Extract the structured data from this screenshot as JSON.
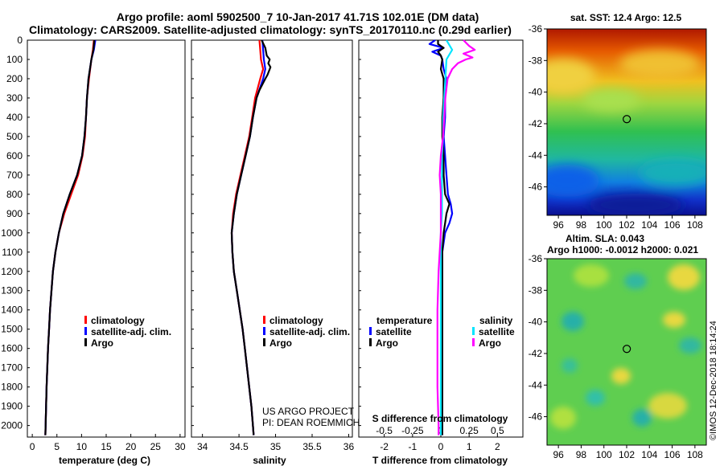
{
  "title_line1": "Argo profile: aoml 5902500_7 10-Jan-2017 41.71S 102.01E (DM data)",
  "title_line2": "Climatology: CARS2009. Satellite-adjusted climatology: synTS_20170110.nc (0.29d earlier)",
  "credit_line1": "US ARGO PROJECT",
  "credit_line2": "PI: DEAN ROEMMICH",
  "watermark": "©IMOS 12-Dec-2018 18:14:24",
  "map_sst_title": "sat. SST: 12.4 Argo: 12.5",
  "map_sla_title1": "Altim. SLA: 0.043",
  "map_sla_title2": "Argo h1000: -0.0012 h2000: 0.021",
  "depth_ticks": [
    0,
    100,
    200,
    300,
    400,
    500,
    600,
    700,
    800,
    900,
    1000,
    1100,
    1200,
    1300,
    1400,
    1500,
    1600,
    1700,
    1800,
    1900,
    2000
  ],
  "colors": {
    "climatology": "#ff0000",
    "satellite": "#0000ff",
    "argo": "#000000",
    "sat_salinity": "#00e5ff",
    "argo_salinity": "#ff00ff"
  },
  "chart_data": [
    {
      "type": "line",
      "panel": "temperature",
      "xlabel": "temperature (deg C)",
      "xlim": [
        -1,
        31
      ],
      "xticks": [
        0,
        5,
        10,
        15,
        20,
        25,
        30
      ],
      "ylim": [
        2060,
        0
      ],
      "legend": [
        "climatology",
        "satellite-adj. clim.",
        "Argo"
      ],
      "legend_placement": "lower-right",
      "series": [
        {
          "name": "climatology",
          "color": "#ff0000",
          "depth": [
            0,
            50,
            100,
            200,
            300,
            400,
            500,
            600,
            700,
            800,
            900,
            1000,
            1100,
            1200,
            1300,
            1400,
            1500,
            1600,
            1700,
            1800,
            1900,
            2000,
            2050
          ],
          "values": [
            12.5,
            12.3,
            12.0,
            11.5,
            11.1,
            10.9,
            10.7,
            10.2,
            9.3,
            7.9,
            6.5,
            5.4,
            4.7,
            4.2,
            3.9,
            3.6,
            3.4,
            3.2,
            3.05,
            2.9,
            2.8,
            2.7,
            2.65
          ]
        },
        {
          "name": "satellite-adj. clim.",
          "color": "#0000ff",
          "depth": [
            0,
            50,
            100,
            200,
            300,
            400,
            500,
            600,
            700,
            800,
            900,
            1000,
            1100,
            1200,
            1300,
            1400,
            1500,
            1600,
            1700,
            1800,
            1900,
            2000,
            2050
          ],
          "values": [
            12.8,
            12.5,
            12.0,
            11.4,
            11.1,
            10.9,
            10.6,
            10.1,
            9.1,
            7.6,
            6.3,
            5.4,
            4.7,
            4.2,
            3.9,
            3.6,
            3.4,
            3.2,
            3.05,
            2.9,
            2.8,
            2.7,
            2.65
          ]
        },
        {
          "name": "Argo",
          "color": "#000000",
          "depth": [
            0,
            50,
            100,
            200,
            300,
            400,
            500,
            600,
            700,
            800,
            900,
            1000,
            1100,
            1200,
            1300,
            1400,
            1500,
            1600,
            1700,
            1800,
            1900,
            2000,
            2050
          ],
          "values": [
            12.6,
            12.4,
            12.0,
            11.4,
            11.1,
            10.9,
            10.6,
            10.1,
            9.1,
            7.6,
            6.3,
            5.4,
            4.7,
            4.2,
            3.9,
            3.6,
            3.4,
            3.2,
            3.05,
            2.9,
            2.8,
            2.7,
            2.65
          ]
        }
      ]
    },
    {
      "type": "line",
      "panel": "salinity",
      "xlabel": "salinity",
      "xlim": [
        33.85,
        36.05
      ],
      "xticks": [
        34,
        34.5,
        35,
        35.5,
        36
      ],
      "ylim": [
        2060,
        0
      ],
      "legend": [
        "climatology",
        "satellite-adj. clim.",
        "Argo"
      ],
      "legend_placement": "lower-right",
      "series": [
        {
          "name": "climatology",
          "color": "#ff0000",
          "depth": [
            0,
            50,
            100,
            150,
            200,
            300,
            400,
            500,
            600,
            700,
            800,
            900,
            1000,
            1100,
            1200,
            1300,
            1400,
            1500,
            1600,
            1700,
            1800,
            1900,
            2000,
            2050
          ],
          "values": [
            34.78,
            34.79,
            34.8,
            34.83,
            34.79,
            34.72,
            34.68,
            34.64,
            34.58,
            34.52,
            34.46,
            34.42,
            34.4,
            34.41,
            34.43,
            34.47,
            34.51,
            34.55,
            34.58,
            34.61,
            34.64,
            34.67,
            34.69,
            34.7
          ]
        },
        {
          "name": "satellite-adj. clim.",
          "color": "#0000ff",
          "depth": [
            0,
            50,
            100,
            150,
            200,
            300,
            400,
            500,
            600,
            700,
            800,
            900,
            1000,
            1100,
            1200,
            1300,
            1400,
            1500,
            1600,
            1700,
            1800,
            1900,
            2000,
            2050
          ],
          "values": [
            34.82,
            34.83,
            34.84,
            34.86,
            34.83,
            34.74,
            34.69,
            34.65,
            34.59,
            34.53,
            34.47,
            34.43,
            34.4,
            34.41,
            34.43,
            34.47,
            34.51,
            34.55,
            34.58,
            34.61,
            34.64,
            34.67,
            34.69,
            34.7
          ]
        },
        {
          "name": "Argo",
          "color": "#000000",
          "depth": [
            0,
            40,
            80,
            100,
            120,
            140,
            160,
            180,
            200,
            260,
            300,
            400,
            500,
            600,
            700,
            800,
            900,
            1000,
            1100,
            1200,
            1300,
            1400,
            1500,
            1600,
            1700,
            1800,
            1900,
            2000,
            2050
          ],
          "values": [
            34.81,
            34.86,
            34.88,
            34.92,
            34.9,
            34.93,
            34.91,
            34.89,
            34.86,
            34.78,
            34.74,
            34.69,
            34.65,
            34.59,
            34.53,
            34.47,
            34.43,
            34.4,
            34.41,
            34.43,
            34.47,
            34.51,
            34.55,
            34.58,
            34.61,
            34.64,
            34.67,
            34.69,
            34.7
          ]
        }
      ]
    },
    {
      "type": "line",
      "panel": "difference",
      "xlabel": "T difference from climatology",
      "xlabel_top": "S difference from climatology",
      "xlim": [
        -2.9,
        2.9
      ],
      "xticks": [
        -2,
        -1,
        0,
        1,
        2
      ],
      "xticks_salinity": [
        "-0.5",
        "-0.25",
        "0",
        "0.25",
        "0.5"
      ],
      "ylim": [
        2060,
        0
      ],
      "legend_temperature": {
        "title": "temperature",
        "items": [
          "satellite",
          "Argo"
        ]
      },
      "legend_salinity": {
        "title": "salinity",
        "items": [
          "satellite",
          "Argo"
        ]
      },
      "series": [
        {
          "name": "temperature satellite",
          "color": "#0000ff",
          "depth": [
            0,
            20,
            40,
            60,
            80,
            100,
            150,
            200,
            300,
            400,
            500,
            600,
            700,
            800,
            850,
            900,
            950,
            1000,
            1100,
            1200,
            1400,
            1600,
            1800,
            2000,
            2050
          ],
          "values": [
            -0.2,
            -0.4,
            0.1,
            -0.3,
            0.0,
            0.05,
            0.1,
            0.2,
            0.15,
            0.15,
            0.1,
            0.15,
            0.2,
            0.25,
            0.35,
            0.4,
            0.3,
            0.15,
            0.05,
            0.05,
            0.05,
            0.05,
            0.05,
            0.05,
            0.05
          ]
        },
        {
          "name": "temperature Argo",
          "color": "#000000",
          "depth": [
            0,
            20,
            40,
            60,
            80,
            100,
            150,
            200,
            300,
            400,
            500,
            600,
            700,
            800,
            850,
            900,
            950,
            1000,
            1100,
            1200,
            1400,
            1600,
            1800,
            2000,
            2050
          ],
          "values": [
            -0.1,
            -0.1,
            0.1,
            -0.1,
            0.0,
            0.05,
            0.0,
            0.1,
            0.1,
            0.05,
            0.05,
            0.1,
            0.1,
            0.15,
            0.3,
            0.2,
            0.15,
            0.1,
            0.05,
            0.05,
            0.05,
            0.05,
            0.05,
            0.05,
            0.05
          ]
        },
        {
          "name": "salinity satellite",
          "color": "#00e5ff",
          "depth": [
            0,
            50,
            100,
            200,
            300,
            400,
            500,
            600,
            700,
            800,
            900,
            1000,
            1200,
            1400,
            1600,
            1800,
            2000,
            2050
          ],
          "values": [
            0.05,
            0.1,
            0.05,
            0.04,
            0.03,
            0.02,
            0.02,
            0.01,
            0.01,
            0.01,
            0.01,
            0.0,
            0.0,
            0.0,
            0.0,
            0.0,
            0.0,
            0.0
          ]
        },
        {
          "name": "salinity Argo",
          "color": "#ff00ff",
          "depth": [
            0,
            30,
            50,
            70,
            90,
            100,
            120,
            150,
            200,
            300,
            400,
            500,
            600,
            700,
            800,
            900,
            1000,
            1200,
            1400,
            1600,
            1800,
            2000,
            2050
          ],
          "values": [
            0.2,
            0.25,
            0.3,
            0.2,
            0.28,
            0.22,
            0.15,
            0.1,
            0.06,
            0.04,
            0.03,
            0.02,
            0.0,
            -0.01,
            0.0,
            0.0,
            0.0,
            -0.02,
            -0.03,
            -0.03,
            -0.03,
            -0.02,
            -0.02
          ]
        }
      ]
    },
    {
      "type": "heatmap",
      "panel": "map-sst",
      "title": "sat. SST: 12.4 Argo: 12.5",
      "xlim": [
        95,
        109
      ],
      "ylim": [
        -47.8,
        -36
      ],
      "xticks": [
        96,
        98,
        100,
        102,
        104,
        106,
        108
      ],
      "yticks": [
        -36,
        -38,
        -40,
        -42,
        -44,
        -46
      ],
      "marker": {
        "lon": 102.01,
        "lat": -41.71
      }
    },
    {
      "type": "heatmap",
      "panel": "map-sla",
      "title": "Altim. SLA: 0.043",
      "subtitle": "Argo h1000: -0.0012 h2000: 0.021",
      "xlim": [
        95,
        109
      ],
      "ylim": [
        -47.8,
        -36
      ],
      "xticks": [
        96,
        98,
        100,
        102,
        104,
        106,
        108
      ],
      "yticks": [
        -36,
        -38,
        -40,
        -42,
        -44,
        -46
      ],
      "marker": {
        "lon": 102.01,
        "lat": -41.71
      }
    }
  ]
}
